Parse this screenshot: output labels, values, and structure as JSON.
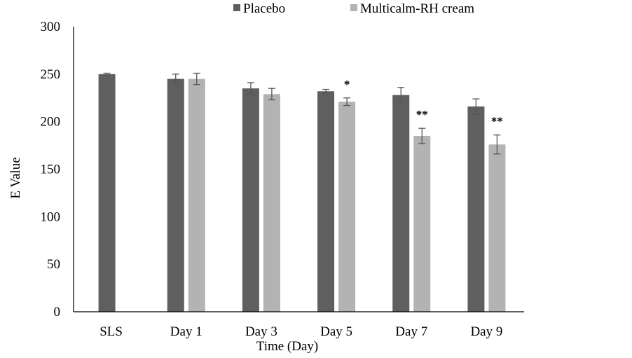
{
  "chart_data": {
    "type": "bar",
    "title": "",
    "xlabel": "Time (Day)",
    "ylabel": "E Value",
    "ylim": [
      0,
      300
    ],
    "yticks": [
      0,
      50,
      100,
      150,
      200,
      250,
      300
    ],
    "grid": false,
    "legend_position": "top-center",
    "categories": [
      "SLS",
      "Day 1",
      "Day 3",
      "Day 5",
      "Day 7",
      "Day 9"
    ],
    "series": [
      {
        "name": "Placebo",
        "color": "#5f5f5f",
        "values": [
          250,
          245,
          235,
          232,
          228,
          216
        ],
        "errors": [
          1,
          5,
          6,
          2,
          8,
          8
        ]
      },
      {
        "name": "Multicalm-RH cream",
        "color": "#b3b3b3",
        "values": [
          null,
          245,
          229,
          221,
          185,
          176
        ],
        "errors": [
          null,
          6,
          6,
          4,
          8,
          10
        ]
      }
    ],
    "annotations": [
      {
        "category": "Day 5",
        "series": "Multicalm-RH cream",
        "text": "*"
      },
      {
        "category": "Day 7",
        "series": "Multicalm-RH cream",
        "text": "**"
      },
      {
        "category": "Day 9",
        "series": "Multicalm-RH cream",
        "text": "**"
      }
    ]
  }
}
